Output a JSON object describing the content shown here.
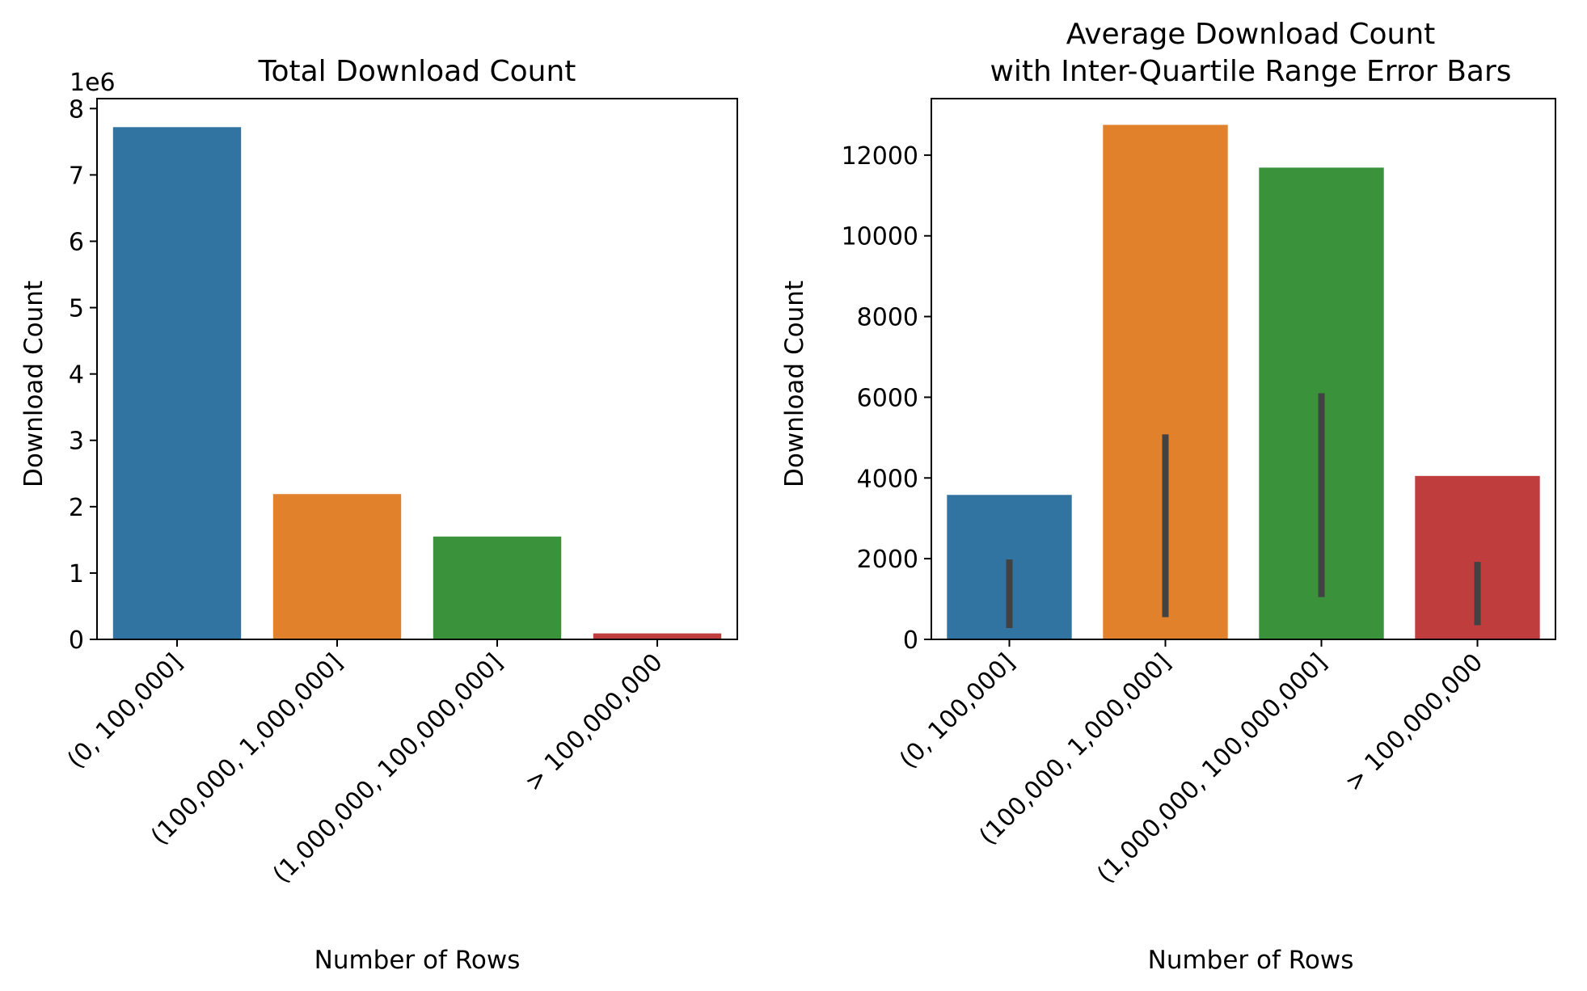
{
  "chart_data": [
    {
      "type": "bar",
      "title": "Total Download Count",
      "xlabel": "Number of Rows",
      "ylabel": "Download Count",
      "y_offset_label": "1e6",
      "categories": [
        "(0, 100,000]",
        "(100,000, 1,000,000]",
        "(1,000,000, 100,000,000]",
        "> 100,000,000"
      ],
      "values": [
        7720000,
        2190000,
        1550000,
        90000
      ],
      "colors": [
        "#3274a1",
        "#e1812c",
        "#3a923a",
        "#c03d3e"
      ],
      "ylim": [
        0,
        8150000
      ],
      "yticks": [
        0,
        1000000,
        2000000,
        3000000,
        4000000,
        5000000,
        6000000,
        7000000,
        8000000
      ],
      "ytick_labels": [
        "0",
        "1",
        "2",
        "3",
        "4",
        "5",
        "6",
        "7",
        "8"
      ],
      "legend": false,
      "grid": false
    },
    {
      "type": "bar",
      "title": "Average Download Count\nwith Inter-Quartile Range Error Bars",
      "title_lines": [
        "Average Download Count",
        "with Inter-Quartile Range Error Bars"
      ],
      "xlabel": "Number of Rows",
      "ylabel": "Download Count",
      "categories": [
        "(0, 100,000]",
        "(100,000, 1,000,000]",
        "(1,000,000, 100,000,000]",
        "> 100,000,000"
      ],
      "values": [
        3580,
        12750,
        11690,
        4050
      ],
      "error_low": [
        280,
        550,
        1050,
        350
      ],
      "error_high": [
        1980,
        5080,
        6100,
        1920
      ],
      "colors": [
        "#3274a1",
        "#e1812c",
        "#3a923a",
        "#c03d3e"
      ],
      "error_color": "#424242",
      "ylim": [
        0,
        13400
      ],
      "yticks": [
        0,
        2000,
        4000,
        6000,
        8000,
        10000,
        12000
      ],
      "ytick_labels": [
        "0",
        "2000",
        "4000",
        "6000",
        "8000",
        "10000",
        "12000"
      ],
      "legend": false,
      "grid": false
    }
  ]
}
